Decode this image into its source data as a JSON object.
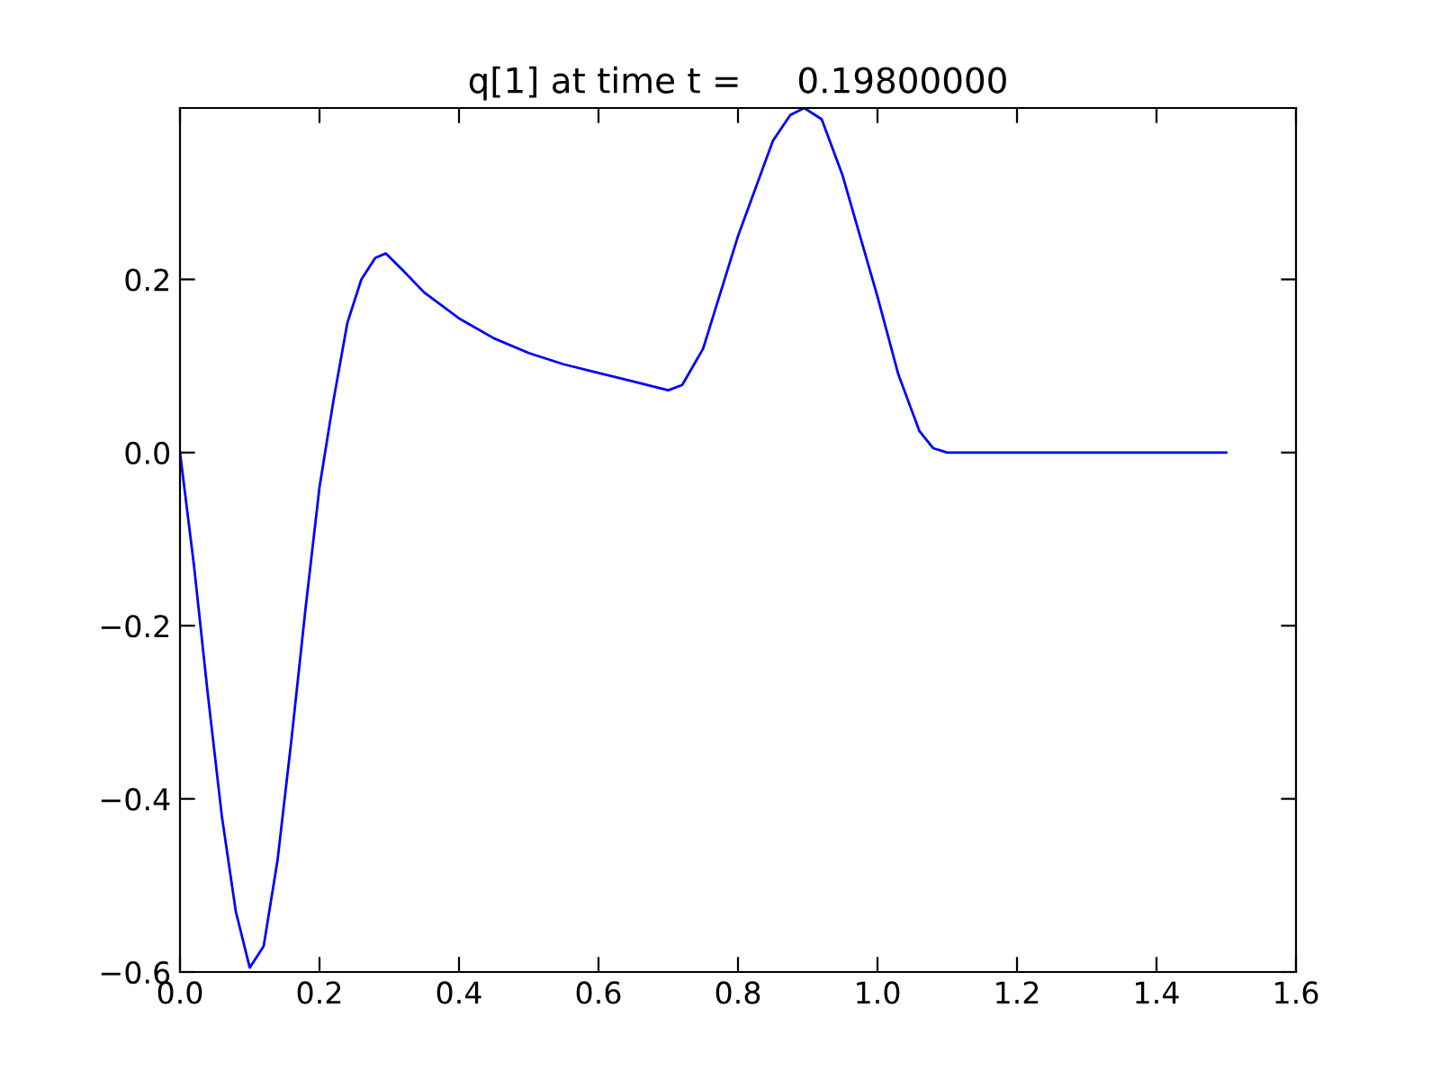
{
  "chart_data": {
    "type": "line",
    "title": "q[1] at time t =     0.19800000",
    "x": [
      0,
      0.02,
      0.04,
      0.06,
      0.08,
      0.1,
      0.12,
      0.14,
      0.16,
      0.18,
      0.2,
      0.22,
      0.24,
      0.26,
      0.28,
      0.295,
      0.32,
      0.35,
      0.4,
      0.45,
      0.5,
      0.55,
      0.6,
      0.65,
      0.7,
      0.72,
      0.75,
      0.8,
      0.85,
      0.875,
      0.895,
      0.92,
      0.95,
      1.0,
      1.03,
      1.06,
      1.08,
      1.1,
      1.5
    ],
    "series": [
      {
        "color": "#0000ff",
        "values": [
          0,
          -0.13,
          -0.28,
          -0.42,
          -0.53,
          -0.595,
          -0.57,
          -0.47,
          -0.33,
          -0.18,
          -0.04,
          0.06,
          0.15,
          0.2,
          0.225,
          0.23,
          0.21,
          0.185,
          0.155,
          0.132,
          0.115,
          0.102,
          0.092,
          0.082,
          0.072,
          0.078,
          0.12,
          0.25,
          0.36,
          0.39,
          0.398,
          0.385,
          0.32,
          0.18,
          0.09,
          0.025,
          0.005,
          0,
          0
        ]
      }
    ],
    "xlim": [
      0,
      1.6
    ],
    "ylim": [
      -0.6,
      0.398
    ],
    "xticks": [
      {
        "value": 0,
        "label": "0.0"
      },
      {
        "value": 0.2,
        "label": "0.2"
      },
      {
        "value": 0.4,
        "label": "0.4"
      },
      {
        "value": 0.6,
        "label": "0.6"
      },
      {
        "value": 0.8,
        "label": "0.8"
      },
      {
        "value": 1.0,
        "label": "1.0"
      },
      {
        "value": 1.2,
        "label": "1.2"
      },
      {
        "value": 1.4,
        "label": "1.4"
      },
      {
        "value": 1.6,
        "label": "1.6"
      }
    ],
    "yticks": [
      {
        "value": -0.6,
        "label": "−0.6"
      },
      {
        "value": -0.4,
        "label": "−0.4"
      },
      {
        "value": -0.2,
        "label": "−0.2"
      },
      {
        "value": 0,
        "label": "0.0"
      },
      {
        "value": 0.2,
        "label": "0.2"
      }
    ],
    "grid": false,
    "legend": false,
    "marker": "none",
    "line_style": "solid"
  }
}
